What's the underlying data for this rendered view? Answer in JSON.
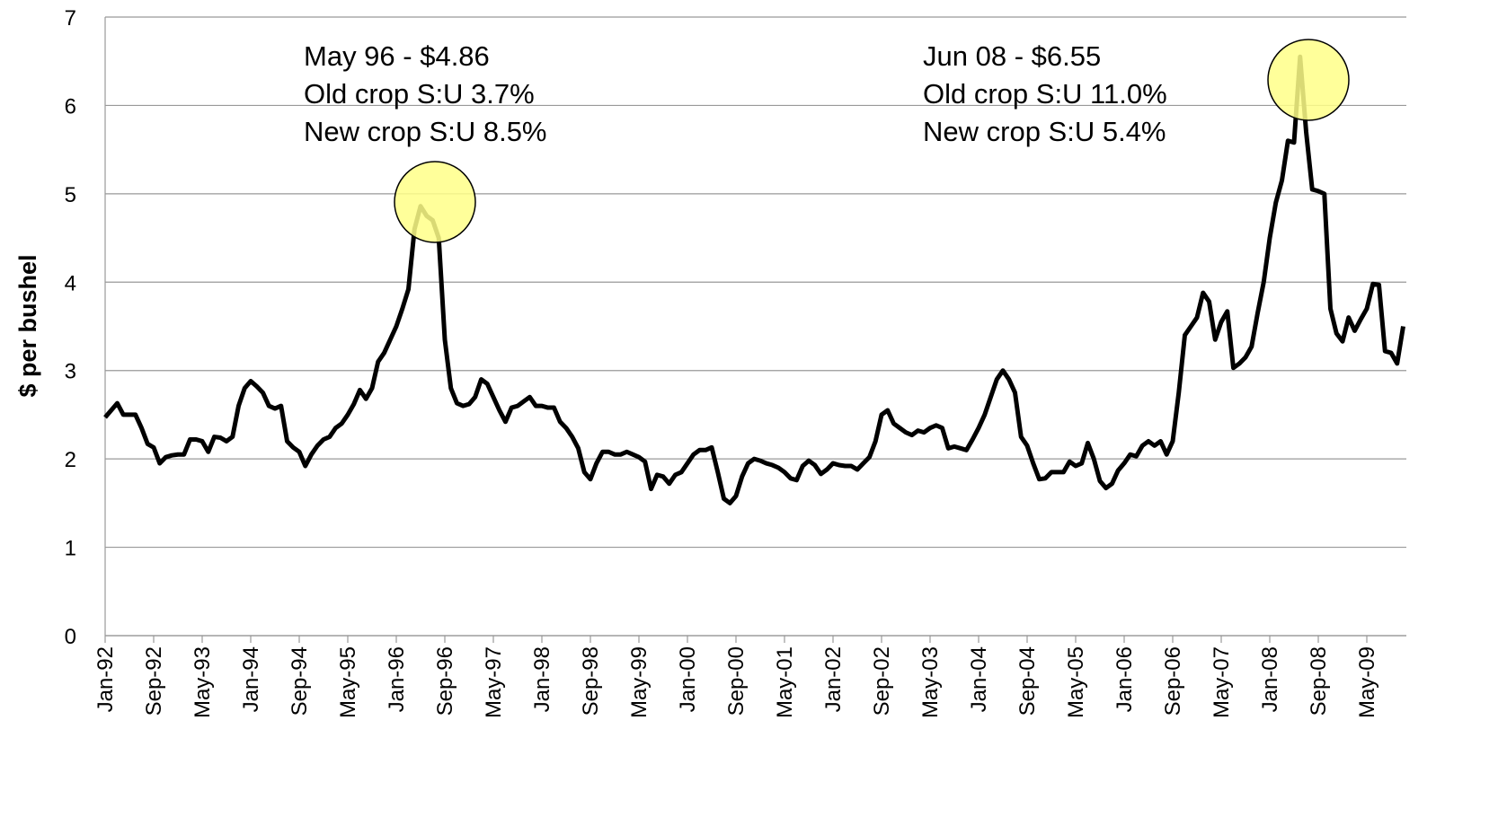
{
  "chart_data": {
    "type": "line",
    "y_label": "$ per bushel",
    "ylim": [
      0,
      7
    ],
    "yticks": [
      0,
      1,
      2,
      3,
      4,
      5,
      6,
      7
    ],
    "grid": true,
    "color": "#000000",
    "annotations": [
      {
        "lines": [
          "May 96 - $4.86",
          "Old crop S:U 3.7%",
          "New crop S:U 8.5%"
        ]
      },
      {
        "lines": [
          "Jun 08 - $6.55",
          "Old crop S:U 11.0%",
          "New crop S:U 5.4%"
        ]
      }
    ],
    "categories": [
      "Jan-92",
      null,
      null,
      null,
      null,
      null,
      null,
      null,
      "Sep-92",
      null,
      null,
      null,
      null,
      null,
      null,
      null,
      "May-93",
      null,
      null,
      null,
      null,
      null,
      null,
      null,
      "Jan-94",
      null,
      null,
      null,
      null,
      null,
      null,
      null,
      "Sep-94",
      null,
      null,
      null,
      null,
      null,
      null,
      null,
      "May-95",
      null,
      null,
      null,
      null,
      null,
      null,
      null,
      "Jan-96",
      null,
      null,
      null,
      null,
      null,
      null,
      null,
      "Sep-96",
      null,
      null,
      null,
      null,
      null,
      null,
      null,
      "May-97",
      null,
      null,
      null,
      null,
      null,
      null,
      null,
      "Jan-98",
      null,
      null,
      null,
      null,
      null,
      null,
      null,
      "Sep-98",
      null,
      null,
      null,
      null,
      null,
      null,
      null,
      "May-99",
      null,
      null,
      null,
      null,
      null,
      null,
      null,
      "Jan-00",
      null,
      null,
      null,
      null,
      null,
      null,
      null,
      "Sep-00",
      null,
      null,
      null,
      null,
      null,
      null,
      null,
      "May-01",
      null,
      null,
      null,
      null,
      null,
      null,
      null,
      "Jan-02",
      null,
      null,
      null,
      null,
      null,
      null,
      null,
      "Sep-02",
      null,
      null,
      null,
      null,
      null,
      null,
      null,
      "May-03",
      null,
      null,
      null,
      null,
      null,
      null,
      null,
      "Jan-04",
      null,
      null,
      null,
      null,
      null,
      null,
      null,
      "Sep-04",
      null,
      null,
      null,
      null,
      null,
      null,
      null,
      "May-05",
      null,
      null,
      null,
      null,
      null,
      null,
      null,
      "Jan-06",
      null,
      null,
      null,
      null,
      null,
      null,
      null,
      "Sep-06",
      null,
      null,
      null,
      null,
      null,
      null,
      null,
      "May-07",
      null,
      null,
      null,
      null,
      null,
      null,
      null,
      "Jan-08",
      null,
      null,
      null,
      null,
      null,
      null,
      null,
      "Sep-08",
      null,
      null,
      null,
      null,
      null,
      null,
      null,
      "May-09",
      null,
      null,
      null,
      null,
      null,
      null
    ],
    "values": [
      2.47,
      2.55,
      2.63,
      2.5,
      2.5,
      2.5,
      2.35,
      2.17,
      2.13,
      1.95,
      2.02,
      2.04,
      2.05,
      2.05,
      2.22,
      2.22,
      2.2,
      2.08,
      2.25,
      2.24,
      2.2,
      2.25,
      2.6,
      2.8,
      2.88,
      2.82,
      2.75,
      2.6,
      2.57,
      2.6,
      2.2,
      2.13,
      2.08,
      1.92,
      2.05,
      2.15,
      2.22,
      2.25,
      2.35,
      2.4,
      2.5,
      2.62,
      2.78,
      2.68,
      2.8,
      3.1,
      3.2,
      3.35,
      3.5,
      3.7,
      3.92,
      4.6,
      4.86,
      4.75,
      4.7,
      4.5,
      3.35,
      2.8,
      2.63,
      2.6,
      2.62,
      2.7,
      2.9,
      2.85,
      2.7,
      2.55,
      2.42,
      2.58,
      2.6,
      2.65,
      2.7,
      2.6,
      2.6,
      2.58,
      2.58,
      2.42,
      2.35,
      2.25,
      2.12,
      1.85,
      1.77,
      1.95,
      2.08,
      2.08,
      2.05,
      2.05,
      2.08,
      2.05,
      2.02,
      1.97,
      1.66,
      1.82,
      1.8,
      1.72,
      1.82,
      1.85,
      1.95,
      2.05,
      2.1,
      2.1,
      2.13,
      1.85,
      1.55,
      1.5,
      1.58,
      1.8,
      1.95,
      2.0,
      1.98,
      1.95,
      1.93,
      1.9,
      1.85,
      1.78,
      1.76,
      1.92,
      1.98,
      1.93,
      1.83,
      1.88,
      1.95,
      1.93,
      1.92,
      1.92,
      1.88,
      1.95,
      2.02,
      2.2,
      2.5,
      2.55,
      2.4,
      2.35,
      2.3,
      2.27,
      2.32,
      2.3,
      2.35,
      2.38,
      2.35,
      2.12,
      2.14,
      2.12,
      2.1,
      2.22,
      2.35,
      2.5,
      2.7,
      2.9,
      3.0,
      2.9,
      2.75,
      2.25,
      2.15,
      1.95,
      1.77,
      1.78,
      1.85,
      1.85,
      1.85,
      1.97,
      1.92,
      1.95,
      2.18,
      2.0,
      1.75,
      1.67,
      1.72,
      1.87,
      1.95,
      2.05,
      2.03,
      2.15,
      2.2,
      2.15,
      2.2,
      2.05,
      2.2,
      2.75,
      3.4,
      3.5,
      3.6,
      3.88,
      3.78,
      3.35,
      3.55,
      3.67,
      3.03,
      3.08,
      3.15,
      3.27,
      3.65,
      4.0,
      4.5,
      4.9,
      5.15,
      5.6,
      5.58,
      6.55,
      5.7,
      5.05,
      5.03,
      5.0,
      3.7,
      3.42,
      3.33,
      3.6,
      3.45,
      3.58,
      3.7,
      3.98,
      3.97,
      3.22,
      3.2,
      3.08,
      3.5
    ]
  }
}
